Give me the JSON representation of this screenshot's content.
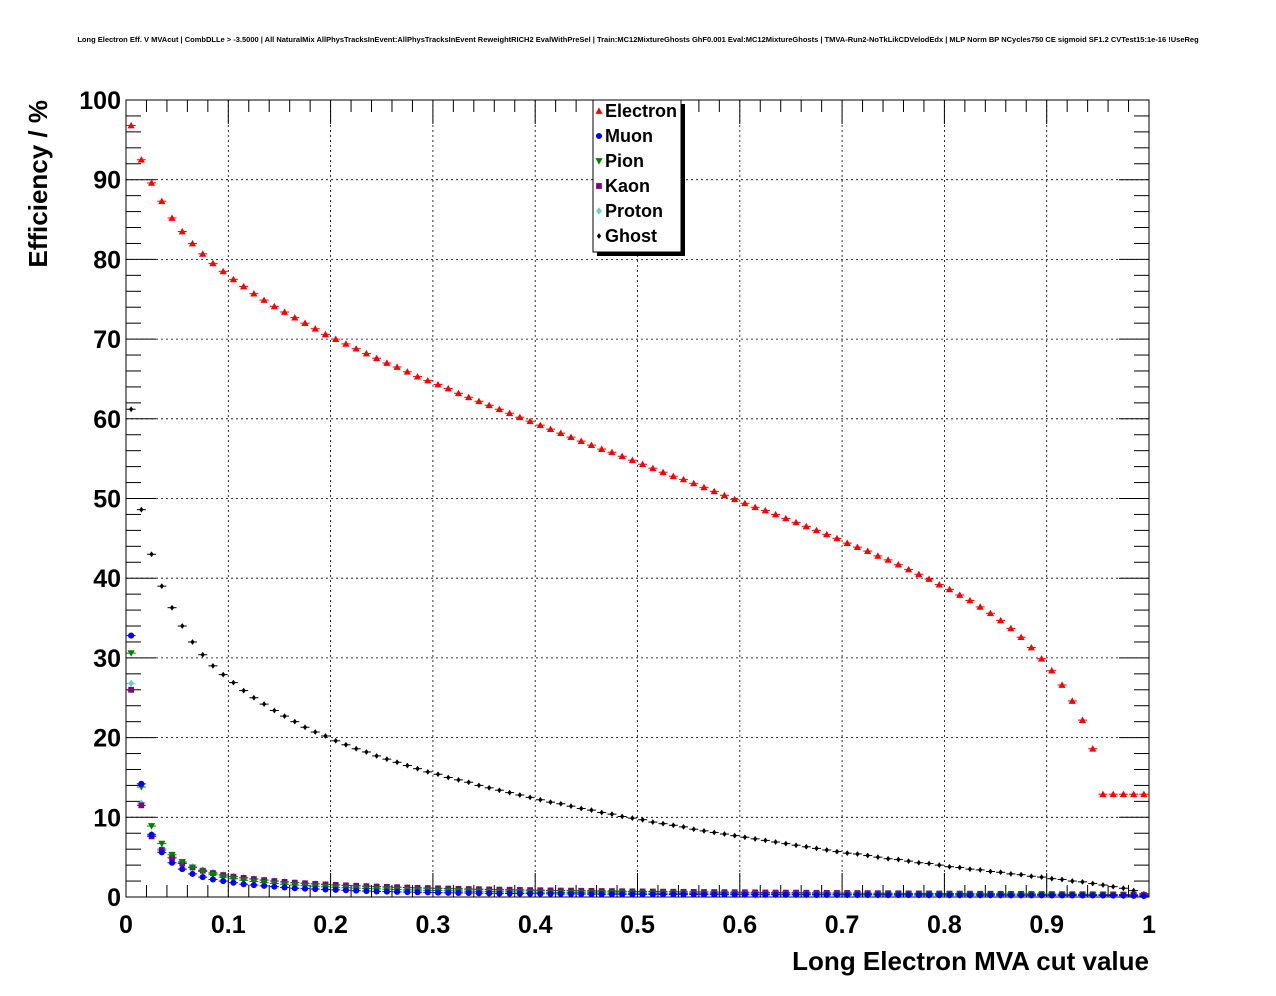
{
  "chart_data": {
    "type": "scatter",
    "title": "Long Electron Eff. V MVAcut | CombDLLe > -3.5000 | All NaturalMix AllPhysTracksInEvent:AllPhysTracksInEvent ReweightRICH2 EvalWithPreSel | Train:MC12MixtureGhosts GhF0.001 Eval:MC12MixtureGhosts | TMVA-Run2-NoTkLikCDVelodEdx | MLP Norm BP NCycles750 CE sigmoid SF1.2 CVTest15:1e-16 !UseReg",
    "xlabel": "Long Electron MVA cut value",
    "ylabel": "Efficiency / %",
    "xlim": [
      0,
      1
    ],
    "ylim": [
      0,
      100
    ],
    "grid": true,
    "legend_position": "top-center",
    "xticks": [
      "0",
      "0.1",
      "0.2",
      "0.3",
      "0.4",
      "0.5",
      "0.6",
      "0.7",
      "0.8",
      "0.9",
      "1"
    ],
    "yticks": [
      "0",
      "10",
      "20",
      "30",
      "40",
      "50",
      "60",
      "70",
      "80",
      "90",
      "100"
    ],
    "x": [
      0.005,
      0.015,
      0.025,
      0.035,
      0.045,
      0.055,
      0.065,
      0.075,
      0.085,
      0.095,
      0.105,
      0.115,
      0.125,
      0.135,
      0.145,
      0.155,
      0.165,
      0.175,
      0.185,
      0.195,
      0.205,
      0.215,
      0.225,
      0.235,
      0.245,
      0.255,
      0.265,
      0.275,
      0.285,
      0.295,
      0.305,
      0.315,
      0.325,
      0.335,
      0.345,
      0.355,
      0.365,
      0.375,
      0.385,
      0.395,
      0.405,
      0.415,
      0.425,
      0.435,
      0.445,
      0.455,
      0.465,
      0.475,
      0.485,
      0.495,
      0.505,
      0.515,
      0.525,
      0.535,
      0.545,
      0.555,
      0.565,
      0.575,
      0.585,
      0.595,
      0.605,
      0.615,
      0.625,
      0.635,
      0.645,
      0.655,
      0.665,
      0.675,
      0.685,
      0.695,
      0.705,
      0.715,
      0.725,
      0.735,
      0.745,
      0.755,
      0.765,
      0.775,
      0.785,
      0.795,
      0.805,
      0.815,
      0.825,
      0.835,
      0.845,
      0.855,
      0.865,
      0.875,
      0.885,
      0.895,
      0.905,
      0.915,
      0.925,
      0.935,
      0.945,
      0.955,
      0.965,
      0.975,
      0.985,
      0.995
    ],
    "series": [
      {
        "name": "Electron",
        "color": "#ff0000",
        "marker": "triangle-up",
        "values": [
          96.8,
          92.5,
          89.6,
          87.3,
          85.2,
          83.5,
          82.0,
          80.7,
          79.5,
          78.5,
          77.5,
          76.6,
          75.7,
          74.9,
          74.1,
          73.4,
          72.7,
          72.0,
          71.3,
          70.6,
          70.0,
          69.4,
          68.8,
          68.2,
          67.6,
          67.0,
          66.5,
          65.9,
          65.3,
          64.8,
          64.3,
          63.8,
          63.2,
          62.7,
          62.2,
          61.7,
          61.2,
          60.7,
          60.2,
          59.7,
          59.2,
          58.7,
          58.2,
          57.7,
          57.2,
          56.7,
          56.2,
          55.8,
          55.3,
          54.8,
          54.3,
          53.8,
          53.3,
          52.8,
          52.4,
          51.9,
          51.4,
          50.9,
          50.4,
          49.9,
          49.4,
          48.9,
          48.5,
          48.0,
          47.5,
          47.0,
          46.5,
          46.0,
          45.5,
          45.0,
          44.4,
          43.9,
          43.4,
          42.8,
          42.3,
          41.7,
          41.1,
          40.5,
          39.9,
          39.2,
          38.6,
          37.9,
          37.2,
          36.4,
          35.6,
          34.7,
          33.7,
          32.6,
          31.3,
          29.9,
          28.4,
          26.6,
          24.6,
          22.2,
          18.6,
          12.9,
          12.9,
          12.9,
          12.9,
          12.9
        ]
      },
      {
        "name": "Muon",
        "color": "#0000ff",
        "marker": "circle",
        "values": [
          32.8,
          14.2,
          7.8,
          5.6,
          4.3,
          3.5,
          2.9,
          2.5,
          2.2,
          2.0,
          1.8,
          1.6,
          1.5,
          1.4,
          1.3,
          1.2,
          1.1,
          1.05,
          1.0,
          0.95,
          0.9,
          0.85,
          0.8,
          0.75,
          0.7,
          0.68,
          0.65,
          0.62,
          0.6,
          0.58,
          0.55,
          0.53,
          0.51,
          0.5,
          0.48,
          0.46,
          0.45,
          0.44,
          0.43,
          0.42,
          0.41,
          0.4,
          0.39,
          0.38,
          0.37,
          0.36,
          0.35,
          0.35,
          0.34,
          0.34,
          0.33,
          0.33,
          0.32,
          0.32,
          0.31,
          0.31,
          0.3,
          0.3,
          0.3,
          0.29,
          0.29,
          0.28,
          0.28,
          0.28,
          0.27,
          0.27,
          0.27,
          0.26,
          0.26,
          0.26,
          0.25,
          0.25,
          0.25,
          0.25,
          0.24,
          0.24,
          0.24,
          0.24,
          0.23,
          0.23,
          0.23,
          0.23,
          0.22,
          0.22,
          0.22,
          0.22,
          0.21,
          0.21,
          0.21,
          0.21,
          0.2,
          0.2,
          0.2,
          0.2,
          0.19,
          0.19,
          0.18,
          0.17,
          0.15,
          0.12
        ]
      },
      {
        "name": "Pion",
        "color": "#008000",
        "marker": "triangle-down",
        "values": [
          30.6,
          13.8,
          8.9,
          6.7,
          5.3,
          4.4,
          3.7,
          3.2,
          2.8,
          2.5,
          2.3,
          2.1,
          1.95,
          1.8,
          1.7,
          1.6,
          1.5,
          1.42,
          1.35,
          1.28,
          1.22,
          1.16,
          1.11,
          1.06,
          1.02,
          0.98,
          0.94,
          0.9,
          0.87,
          0.84,
          0.81,
          0.78,
          0.75,
          0.73,
          0.71,
          0.69,
          0.67,
          0.65,
          0.63,
          0.61,
          0.6,
          0.58,
          0.57,
          0.55,
          0.54,
          0.53,
          0.52,
          0.51,
          0.5,
          0.49,
          0.48,
          0.47,
          0.46,
          0.45,
          0.44,
          0.43,
          0.42,
          0.42,
          0.41,
          0.4,
          0.4,
          0.39,
          0.38,
          0.38,
          0.37,
          0.36,
          0.36,
          0.35,
          0.35,
          0.34,
          0.34,
          0.33,
          0.33,
          0.32,
          0.32,
          0.31,
          0.31,
          0.3,
          0.3,
          0.3,
          0.29,
          0.29,
          0.28,
          0.28,
          0.28,
          0.27,
          0.27,
          0.26,
          0.26,
          0.26,
          0.25,
          0.25,
          0.24,
          0.24,
          0.23,
          0.23,
          0.22,
          0.21,
          0.19,
          0.16
        ]
      },
      {
        "name": "Kaon",
        "color": "#800080",
        "marker": "square",
        "values": [
          26.0,
          11.5,
          7.6,
          5.9,
          4.9,
          4.2,
          3.7,
          3.3,
          3.0,
          2.75,
          2.55,
          2.4,
          2.25,
          2.12,
          2.0,
          1.9,
          1.8,
          1.72,
          1.65,
          1.58,
          1.52,
          1.46,
          1.41,
          1.36,
          1.31,
          1.27,
          1.23,
          1.19,
          1.15,
          1.12,
          1.09,
          1.06,
          1.03,
          1.0,
          0.98,
          0.95,
          0.93,
          0.91,
          0.89,
          0.87,
          0.85,
          0.83,
          0.81,
          0.8,
          0.78,
          0.77,
          0.75,
          0.74,
          0.72,
          0.71,
          0.7,
          0.69,
          0.67,
          0.66,
          0.65,
          0.64,
          0.63,
          0.62,
          0.61,
          0.6,
          0.59,
          0.58,
          0.57,
          0.56,
          0.55,
          0.55,
          0.54,
          0.53,
          0.52,
          0.51,
          0.51,
          0.5,
          0.49,
          0.48,
          0.48,
          0.47,
          0.46,
          0.45,
          0.45,
          0.44,
          0.43,
          0.43,
          0.42,
          0.41,
          0.41,
          0.4,
          0.39,
          0.39,
          0.38,
          0.37,
          0.37,
          0.36,
          0.35,
          0.35,
          0.34,
          0.33,
          0.32,
          0.31,
          0.29,
          0.26
        ]
      },
      {
        "name": "Proton",
        "color": "#66cccc",
        "marker": "diamond",
        "values": [
          26.8,
          11.8,
          7.9,
          6.1,
          5.0,
          4.3,
          3.8,
          3.4,
          3.1,
          2.8,
          2.6,
          2.45,
          2.3,
          2.15,
          2.03,
          1.92,
          1.82,
          1.73,
          1.65,
          1.58,
          1.51,
          1.45,
          1.39,
          1.34,
          1.29,
          1.24,
          1.2,
          1.16,
          1.12,
          1.08,
          1.05,
          1.02,
          0.99,
          0.96,
          0.93,
          0.91,
          0.88,
          0.86,
          0.84,
          0.82,
          0.8,
          0.78,
          0.76,
          0.74,
          0.73,
          0.71,
          0.7,
          0.68,
          0.67,
          0.66,
          0.64,
          0.63,
          0.62,
          0.61,
          0.6,
          0.59,
          0.58,
          0.57,
          0.56,
          0.55,
          0.54,
          0.53,
          0.52,
          0.51,
          0.5,
          0.5,
          0.49,
          0.48,
          0.47,
          0.46,
          0.46,
          0.45,
          0.44,
          0.43,
          0.43,
          0.42,
          0.41,
          0.4,
          0.4,
          0.39,
          0.38,
          0.38,
          0.37,
          0.36,
          0.36,
          0.35,
          0.34,
          0.34,
          0.33,
          0.32,
          0.32,
          0.31,
          0.3,
          0.3,
          0.29,
          0.28,
          0.27,
          0.26,
          0.24,
          0.21
        ]
      },
      {
        "name": "Ghost",
        "color": "#000000",
        "marker": "cross",
        "values": [
          61.2,
          48.6,
          43.0,
          39.0,
          36.3,
          34.0,
          32.0,
          30.4,
          29.0,
          27.9,
          26.9,
          25.9,
          25.0,
          24.2,
          23.4,
          22.7,
          22.0,
          21.3,
          20.7,
          20.2,
          19.6,
          19.1,
          18.6,
          18.2,
          17.7,
          17.3,
          16.9,
          16.5,
          16.1,
          15.7,
          15.4,
          15.0,
          14.7,
          14.4,
          14.0,
          13.7,
          13.4,
          13.1,
          12.8,
          12.5,
          12.2,
          11.9,
          11.7,
          11.4,
          11.1,
          10.9,
          10.6,
          10.4,
          10.1,
          9.9,
          9.7,
          9.4,
          9.2,
          9.0,
          8.8,
          8.5,
          8.3,
          8.1,
          7.9,
          7.7,
          7.5,
          7.3,
          7.1,
          6.9,
          6.7,
          6.5,
          6.3,
          6.1,
          5.9,
          5.7,
          5.5,
          5.4,
          5.2,
          5.0,
          4.8,
          4.7,
          4.5,
          4.3,
          4.2,
          4.0,
          3.8,
          3.7,
          3.5,
          3.4,
          3.2,
          3.1,
          2.9,
          2.8,
          2.6,
          2.5,
          2.3,
          2.2,
          2.0,
          1.9,
          1.7,
          1.5,
          1.3,
          1.1,
          0.8,
          0.4
        ]
      }
    ]
  }
}
